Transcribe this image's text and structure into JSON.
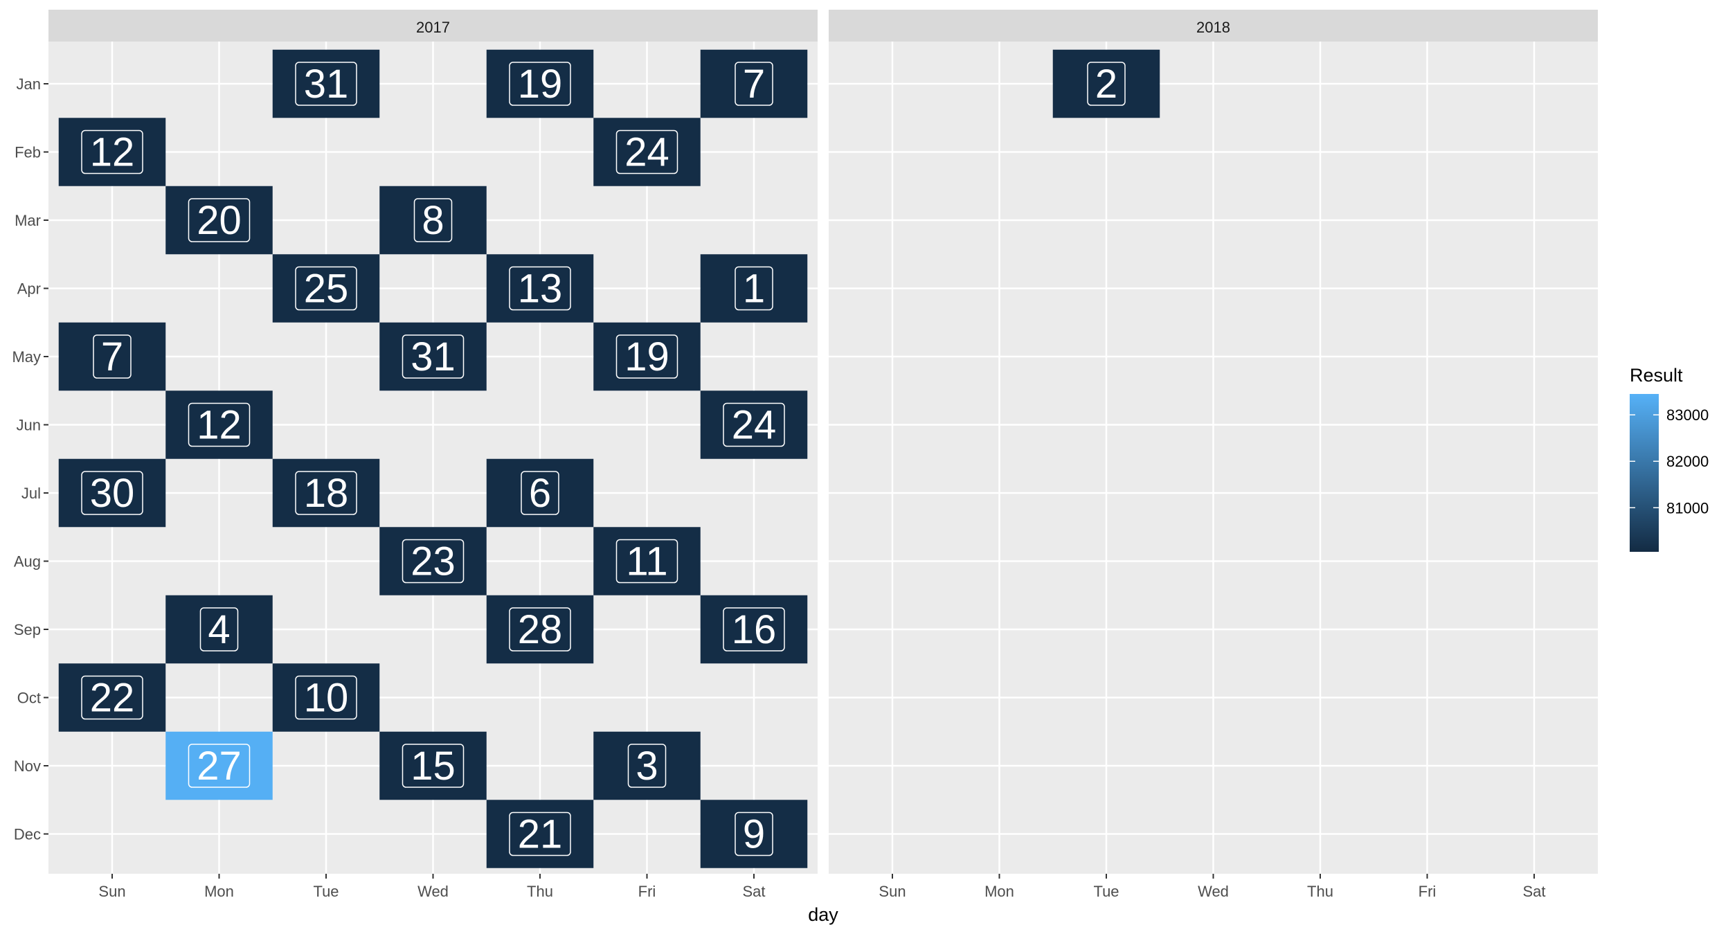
{
  "chart_data": {
    "type": "heatmap",
    "facets": [
      "2017",
      "2018"
    ],
    "x_categories": [
      "Sun",
      "Mon",
      "Tue",
      "Wed",
      "Thu",
      "Fri",
      "Sat"
    ],
    "y_categories": [
      "Jan",
      "Feb",
      "Mar",
      "Apr",
      "May",
      "Jun",
      "Jul",
      "Aug",
      "Sep",
      "Oct",
      "Nov",
      "Dec"
    ],
    "xlabel": "day",
    "ylabel": "",
    "legend": {
      "title": "Result",
      "ticks": [
        "81000",
        "82000",
        "83000"
      ],
      "tick_values": [
        81000,
        82000,
        83000
      ],
      "range": [
        80050,
        83450
      ],
      "low_color": "#132B43",
      "high_color": "#56B1F7",
      "position": "right"
    },
    "cells": [
      {
        "facet": "2017",
        "month": "Jan",
        "day": "Tue",
        "label": "31",
        "result": 80100
      },
      {
        "facet": "2017",
        "month": "Jan",
        "day": "Thu",
        "label": "19",
        "result": 80100
      },
      {
        "facet": "2017",
        "month": "Jan",
        "day": "Sat",
        "label": "7",
        "result": 80100
      },
      {
        "facet": "2017",
        "month": "Feb",
        "day": "Sun",
        "label": "12",
        "result": 80100
      },
      {
        "facet": "2017",
        "month": "Feb",
        "day": "Fri",
        "label": "24",
        "result": 80100
      },
      {
        "facet": "2017",
        "month": "Mar",
        "day": "Mon",
        "label": "20",
        "result": 80100
      },
      {
        "facet": "2017",
        "month": "Mar",
        "day": "Wed",
        "label": "8",
        "result": 80100
      },
      {
        "facet": "2017",
        "month": "Apr",
        "day": "Tue",
        "label": "25",
        "result": 80100
      },
      {
        "facet": "2017",
        "month": "Apr",
        "day": "Thu",
        "label": "13",
        "result": 80100
      },
      {
        "facet": "2017",
        "month": "Apr",
        "day": "Sat",
        "label": "1",
        "result": 80100
      },
      {
        "facet": "2017",
        "month": "May",
        "day": "Sun",
        "label": "7",
        "result": 80100
      },
      {
        "facet": "2017",
        "month": "May",
        "day": "Wed",
        "label": "31",
        "result": 80100
      },
      {
        "facet": "2017",
        "month": "May",
        "day": "Fri",
        "label": "19",
        "result": 80100
      },
      {
        "facet": "2017",
        "month": "Jun",
        "day": "Mon",
        "label": "12",
        "result": 80100
      },
      {
        "facet": "2017",
        "month": "Jun",
        "day": "Sat",
        "label": "24",
        "result": 80100
      },
      {
        "facet": "2017",
        "month": "Jul",
        "day": "Sun",
        "label": "30",
        "result": 80100
      },
      {
        "facet": "2017",
        "month": "Jul",
        "day": "Tue",
        "label": "18",
        "result": 80100
      },
      {
        "facet": "2017",
        "month": "Jul",
        "day": "Thu",
        "label": "6",
        "result": 80100
      },
      {
        "facet": "2017",
        "month": "Aug",
        "day": "Wed",
        "label": "23",
        "result": 80100
      },
      {
        "facet": "2017",
        "month": "Aug",
        "day": "Fri",
        "label": "11",
        "result": 80100
      },
      {
        "facet": "2017",
        "month": "Sep",
        "day": "Mon",
        "label": "4",
        "result": 80100
      },
      {
        "facet": "2017",
        "month": "Sep",
        "day": "Thu",
        "label": "28",
        "result": 80100
      },
      {
        "facet": "2017",
        "month": "Sep",
        "day": "Sat",
        "label": "16",
        "result": 80100
      },
      {
        "facet": "2017",
        "month": "Oct",
        "day": "Sun",
        "label": "22",
        "result": 80100
      },
      {
        "facet": "2017",
        "month": "Oct",
        "day": "Tue",
        "label": "10",
        "result": 80100
      },
      {
        "facet": "2017",
        "month": "Nov",
        "day": "Mon",
        "label": "27",
        "result": 83400
      },
      {
        "facet": "2017",
        "month": "Nov",
        "day": "Wed",
        "label": "15",
        "result": 80100
      },
      {
        "facet": "2017",
        "month": "Nov",
        "day": "Fri",
        "label": "3",
        "result": 80100
      },
      {
        "facet": "2017",
        "month": "Dec",
        "day": "Thu",
        "label": "21",
        "result": 80100
      },
      {
        "facet": "2017",
        "month": "Dec",
        "day": "Sat",
        "label": "9",
        "result": 80100
      },
      {
        "facet": "2018",
        "month": "Jan",
        "day": "Tue",
        "label": "2",
        "result": 80100
      }
    ],
    "grid": true
  }
}
